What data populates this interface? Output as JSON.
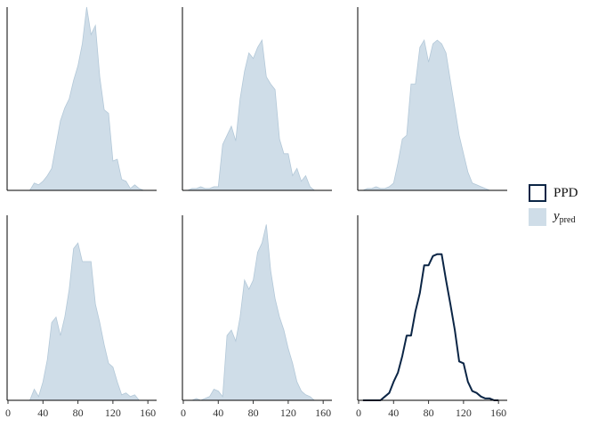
{
  "chart_data": [
    {
      "type": "area",
      "color": "#cfdde8",
      "edge": "#b3c8d8",
      "xlim": [
        -1,
        170
      ],
      "ylim": [
        0,
        100
      ],
      "x": [
        20,
        25,
        30,
        35,
        40,
        45,
        50,
        55,
        60,
        65,
        70,
        75,
        80,
        85,
        90,
        95,
        100,
        105,
        110,
        115,
        120,
        125,
        130,
        135,
        140,
        145,
        150,
        155,
        160
      ],
      "values": [
        0,
        0,
        4,
        3,
        5,
        8,
        12,
        25,
        38,
        45,
        50,
        60,
        68,
        80,
        100,
        85,
        90,
        62,
        44,
        42,
        16,
        17,
        6,
        5,
        1,
        3,
        1,
        0,
        0
      ]
    },
    {
      "type": "area",
      "color": "#cfdde8",
      "edge": "#b3c8d8",
      "xlim": [
        -1,
        170
      ],
      "ylim": [
        0,
        100
      ],
      "x": [
        5,
        10,
        15,
        20,
        25,
        30,
        35,
        40,
        45,
        50,
        55,
        60,
        65,
        70,
        75,
        80,
        85,
        90,
        95,
        100,
        105,
        110,
        115,
        120,
        125,
        130,
        135,
        140,
        145,
        150
      ],
      "values": [
        0,
        1,
        1,
        2,
        1,
        1,
        2,
        2,
        25,
        30,
        35,
        27,
        50,
        65,
        75,
        72,
        78,
        82,
        62,
        58,
        55,
        28,
        20,
        20,
        8,
        12,
        5,
        8,
        2,
        0
      ]
    },
    {
      "type": "area",
      "color": "#cfdde8",
      "edge": "#b3c8d8",
      "xlim": [
        -1,
        170
      ],
      "ylim": [
        0,
        100
      ],
      "x": [
        5,
        10,
        15,
        20,
        25,
        30,
        35,
        40,
        45,
        50,
        55,
        60,
        65,
        70,
        75,
        80,
        85,
        90,
        95,
        100,
        105,
        110,
        115,
        120,
        125,
        130,
        135,
        140,
        145,
        150
      ],
      "values": [
        0,
        1,
        1,
        2,
        1,
        1,
        2,
        4,
        15,
        28,
        30,
        58,
        58,
        78,
        82,
        70,
        80,
        82,
        80,
        75,
        60,
        45,
        30,
        20,
        10,
        4,
        3,
        2,
        1,
        0
      ]
    },
    {
      "type": "area",
      "color": "#cfdde8",
      "edge": "#b3c8d8",
      "xlim": [
        -1,
        170
      ],
      "ylim": [
        0,
        100
      ],
      "xticks": [
        0,
        40,
        80,
        120,
        160
      ],
      "x": [
        20,
        25,
        30,
        35,
        40,
        45,
        50,
        55,
        60,
        65,
        70,
        75,
        80,
        85,
        90,
        95,
        100,
        105,
        110,
        115,
        120,
        125,
        130,
        135,
        140,
        145,
        150,
        155,
        160
      ],
      "values": [
        0,
        0,
        6,
        2,
        10,
        22,
        42,
        45,
        35,
        45,
        60,
        82,
        85,
        75,
        75,
        75,
        52,
        42,
        30,
        20,
        18,
        10,
        3,
        4,
        2,
        3,
        0,
        0,
        0
      ]
    },
    {
      "type": "area",
      "color": "#cfdde8",
      "edge": "#b3c8d8",
      "xlim": [
        -1,
        170
      ],
      "ylim": [
        0,
        100
      ],
      "xticks": [
        0,
        40,
        80,
        120,
        160
      ],
      "x": [
        5,
        10,
        15,
        20,
        25,
        30,
        35,
        40,
        45,
        50,
        55,
        60,
        65,
        70,
        75,
        80,
        85,
        90,
        95,
        100,
        105,
        110,
        115,
        120,
        125,
        130,
        135,
        140,
        145,
        150,
        155,
        160
      ],
      "values": [
        0,
        0,
        1,
        0,
        1,
        2,
        6,
        5,
        2,
        35,
        38,
        32,
        45,
        65,
        60,
        65,
        80,
        85,
        95,
        70,
        55,
        45,
        38,
        28,
        20,
        10,
        5,
        3,
        2,
        0,
        0,
        0
      ]
    },
    {
      "type": "line",
      "color": "#0b2545",
      "xlim": [
        -1,
        170
      ],
      "ylim": [
        0,
        100
      ],
      "xticks": [
        0,
        40,
        80,
        120,
        160
      ],
      "x": [
        5,
        10,
        15,
        20,
        25,
        30,
        35,
        40,
        45,
        50,
        55,
        60,
        65,
        70,
        75,
        80,
        85,
        90,
        95,
        100,
        105,
        110,
        115,
        120,
        125,
        130,
        135,
        140,
        145,
        150,
        155,
        160
      ],
      "values": [
        0,
        0,
        0,
        0,
        0,
        2,
        4,
        10,
        15,
        24,
        35,
        35,
        48,
        58,
        73,
        73,
        78,
        79,
        79,
        65,
        52,
        38,
        21,
        20,
        10,
        5,
        4,
        2,
        1,
        1,
        0,
        0
      ]
    }
  ],
  "legend": {
    "entries": [
      {
        "label": "PPD",
        "style": "outline",
        "color": "#0b2545"
      },
      {
        "label": "y",
        "subscript": "pred",
        "style": "fill",
        "color": "#cfdde8"
      }
    ]
  }
}
